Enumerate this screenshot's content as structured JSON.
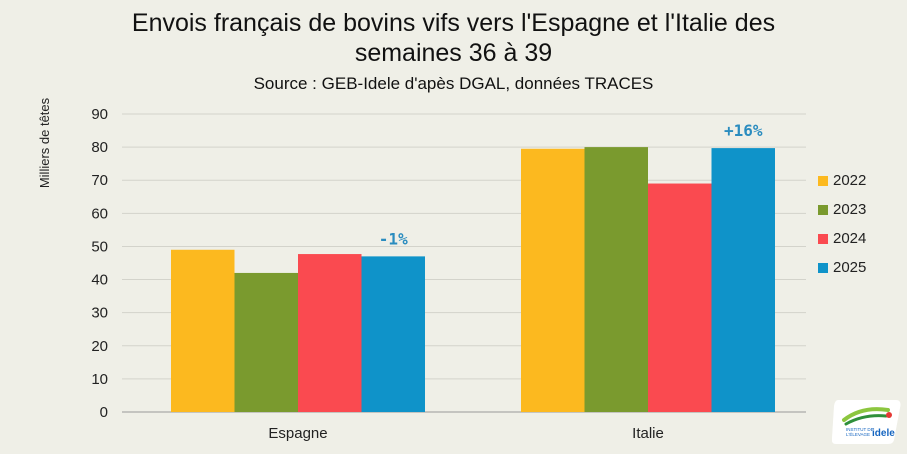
{
  "chart_data": {
    "type": "bar",
    "title_lines": [
      "Envois français de bovins vifs vers l'Espagne et l'Italie des",
      "semaines 36 à 39"
    ],
    "subtitle": "Source : GEB-Idele d'apès DGAL, données TRACES",
    "ylabel": "Milliers de têtes",
    "xlabel": "",
    "ylim": [
      0,
      90
    ],
    "yticks": [
      0,
      10,
      20,
      30,
      40,
      50,
      60,
      70,
      80,
      90
    ],
    "categories": [
      "Espagne",
      "Italie"
    ],
    "series": [
      {
        "name": "2022",
        "color": "#fcb91f",
        "values": [
          49,
          79.5
        ]
      },
      {
        "name": "2023",
        "color": "#7a9a2e",
        "values": [
          42,
          80
        ]
      },
      {
        "name": "2024",
        "color": "#fa4a50",
        "values": [
          47.7,
          69
        ]
      },
      {
        "name": "2025",
        "color": "#0f93c9",
        "values": [
          47,
          79.7
        ]
      }
    ],
    "annotations": [
      {
        "category": "Espagne",
        "series": "2025",
        "text": "-1%",
        "color": "#2a8cbf"
      },
      {
        "category": "Italie",
        "series": "2025",
        "text": "+16%",
        "color": "#2a8cbf"
      }
    ],
    "grid": true,
    "legend_position": "right"
  },
  "logo": {
    "text_line1": "INSTITUT DE",
    "text_line2": "L'ÉLEVAGE",
    "brand": "idele"
  }
}
